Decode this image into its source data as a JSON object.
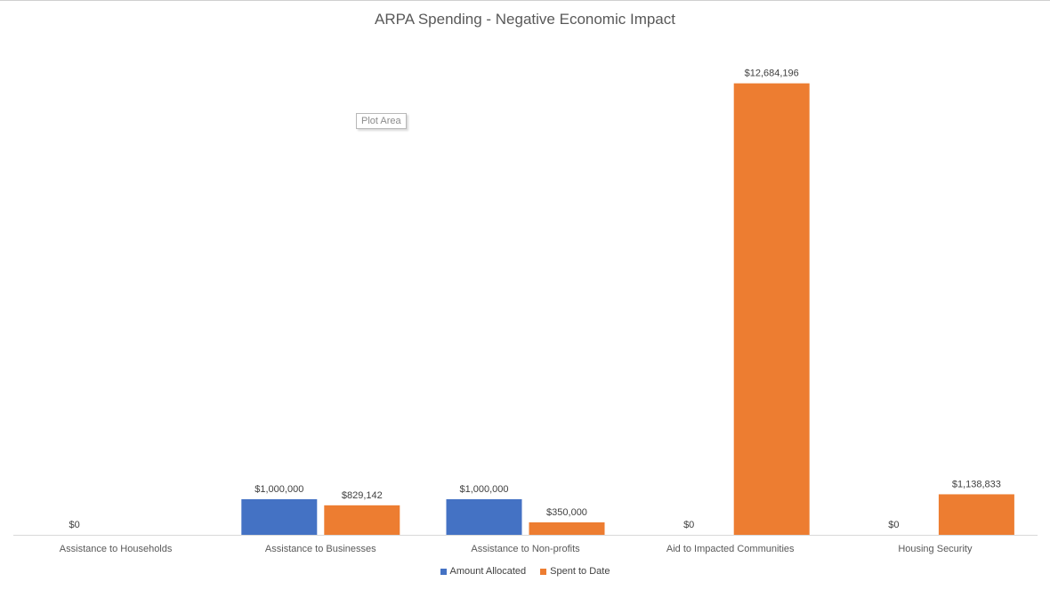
{
  "chart_data": {
    "type": "bar",
    "title": "ARPA Spending - Negative Economic Impact",
    "categories": [
      "Assistance to Households",
      "Assistance to Businesses",
      "Assistance to Non-profits",
      "Aid to Impacted Communities",
      "Housing Security"
    ],
    "series": [
      {
        "name": "Amount Allocated",
        "color": "#4472c4",
        "values": [
          0,
          1000000,
          1000000,
          0,
          0
        ],
        "labels": [
          "$0",
          "$1,000,000",
          "$1,000,000",
          "$0",
          "$0"
        ]
      },
      {
        "name": "Spent to Date",
        "color": "#ed7d31",
        "values": [
          null,
          829142,
          350000,
          12684196,
          1138833
        ],
        "labels": [
          "",
          "$829,142",
          "$350,000",
          "$12,684,196",
          "$1,138,833"
        ]
      }
    ],
    "ylim": [
      0,
      13500000
    ],
    "grid": false,
    "legend_position": "bottom"
  },
  "tooltip": {
    "text": "Plot Area"
  }
}
